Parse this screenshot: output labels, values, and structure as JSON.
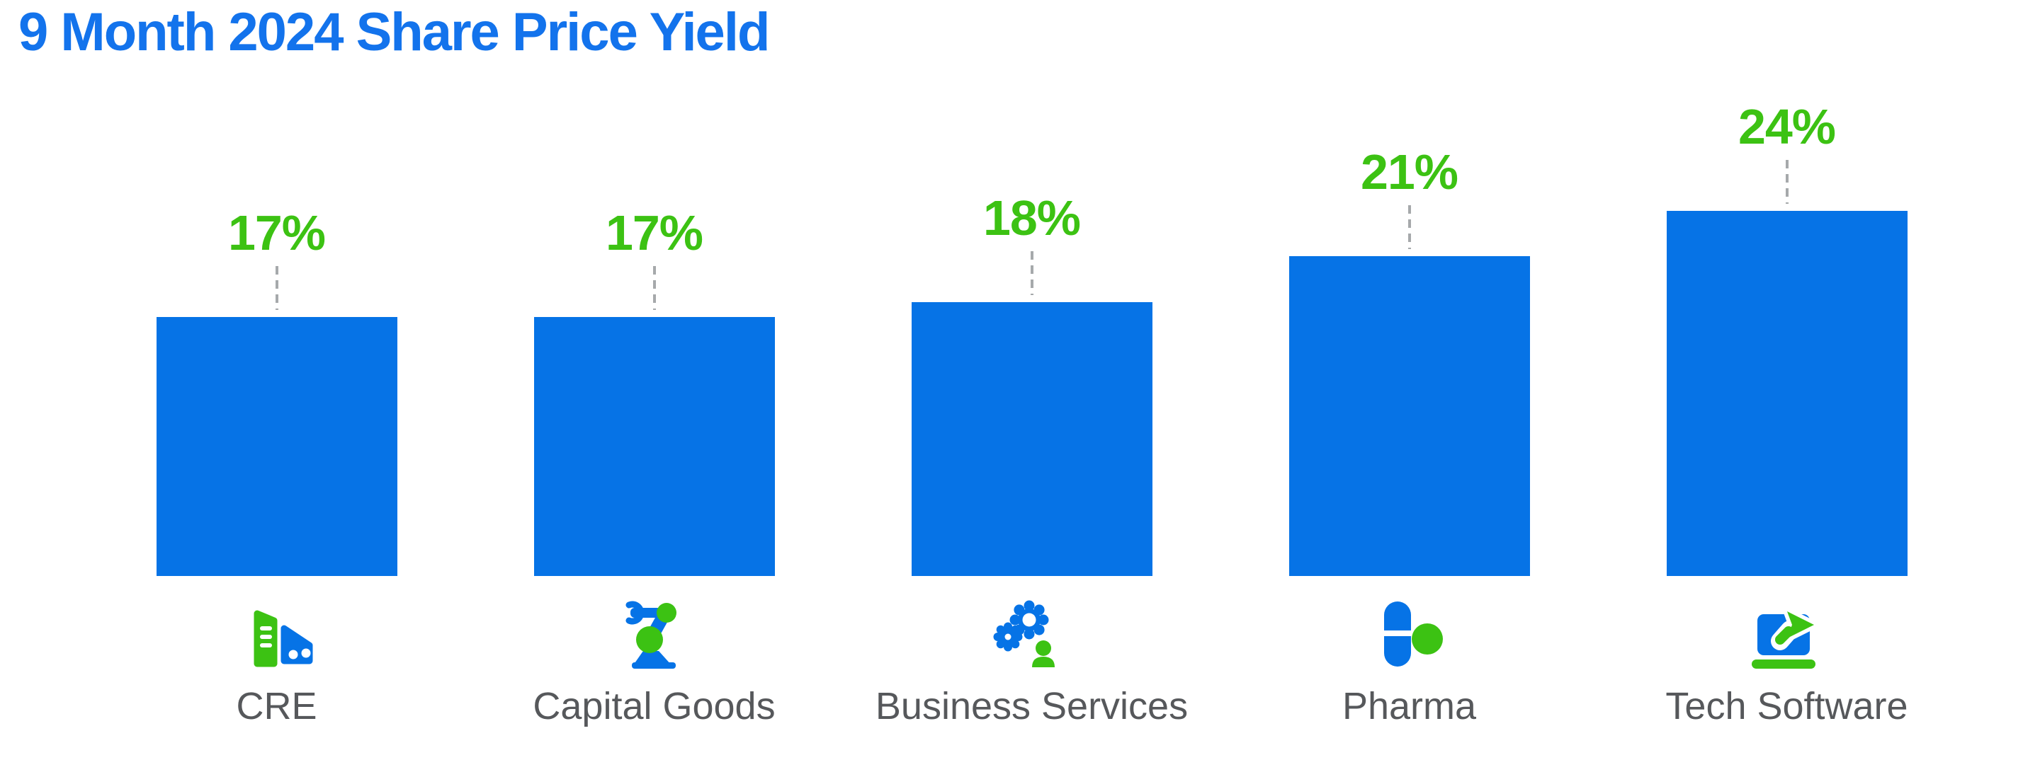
{
  "title": {
    "text": "9 Month 2024 Share Price Yield"
  },
  "colors": {
    "title_blue": "#1373ec",
    "bar_blue": "#0673e6",
    "value_green": "#3cc213",
    "icon_blue": "#0673e6",
    "icon_green": "#3cc213",
    "category_gray": "#56585b",
    "connector_gray": "#a6a9ab",
    "background": "#ffffff"
  },
  "chart_data": {
    "type": "bar",
    "title": "9 Month 2024 Share Price Yield",
    "categories": [
      "CRE",
      "Capital Goods",
      "Business Services",
      "Pharma",
      "Tech Software"
    ],
    "values": [
      17,
      17,
      18,
      21,
      24
    ],
    "unit": "%",
    "xlabel": "",
    "ylabel": "",
    "ylim": [
      0,
      25
    ],
    "axes_visible": false,
    "grid": false,
    "legend": false,
    "bar_color": "#0673e6",
    "value_label_style": "green bold percentage above bar linked by vertical dashed gray connector",
    "points": [
      {
        "category": "CRE",
        "value": 17,
        "label": "17%",
        "icon": "cre-buildings-icon"
      },
      {
        "category": "Capital Goods",
        "value": 17,
        "label": "17%",
        "icon": "robot-arm-icon"
      },
      {
        "category": "Business Services",
        "value": 18,
        "label": "18%",
        "icon": "gears-person-icon"
      },
      {
        "category": "Pharma",
        "value": 21,
        "label": "21%",
        "icon": "pill-capsule-icon"
      },
      {
        "category": "Tech Software",
        "value": 24,
        "label": "24%",
        "icon": "laptop-arrow-icon"
      }
    ]
  }
}
